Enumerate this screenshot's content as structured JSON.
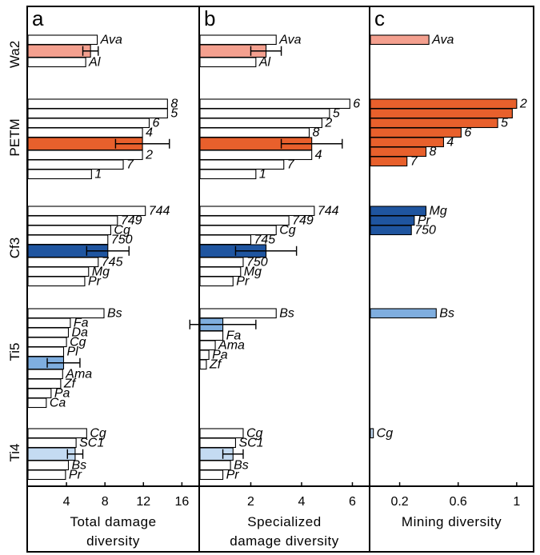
{
  "chart_data": {
    "type": "bar",
    "groups": [
      {
        "key": "wa2",
        "label": "Wa2",
        "color": "#f4a08f"
      },
      {
        "key": "petm",
        "label": "PETM",
        "color": "#e8602c"
      },
      {
        "key": "cf3",
        "label": "Cf3",
        "color": "#1f55a0"
      },
      {
        "key": "ti5",
        "label": "Ti5",
        "color": "#7faedf"
      },
      {
        "key": "ti4",
        "label": "Ti4",
        "color": "#c4dbf2"
      }
    ],
    "panels": [
      {
        "letter": "a",
        "xlabel_lines": [
          "Total damage",
          "diversity"
        ],
        "ticks": [
          4,
          8,
          12,
          16
        ],
        "xlim": [
          0,
          16.8
        ],
        "series": {
          "wa2": {
            "bars": [
              {
                "label": "Ava",
                "value": 7.2
              },
              {
                "label": "",
                "value": 6.5,
                "mean": true,
                "err": 0.8
              },
              {
                "label": "Al",
                "value": 6.0
              }
            ]
          },
          "petm": {
            "bars": [
              {
                "label": "8",
                "value": 14.5
              },
              {
                "label": "5",
                "value": 14.5
              },
              {
                "label": "6",
                "value": 12.6
              },
              {
                "label": "4",
                "value": 11.9
              },
              {
                "label": "",
                "value": 11.9,
                "mean": true,
                "err": 2.8
              },
              {
                "label": "2",
                "value": 11.9
              },
              {
                "label": "7",
                "value": 9.9
              },
              {
                "label": "1",
                "value": 6.6
              }
            ]
          },
          "cf3": {
            "bars": [
              {
                "label": "744",
                "value": 12.2
              },
              {
                "label": "749",
                "value": 9.3
              },
              {
                "label": "Cg",
                "value": 8.6
              },
              {
                "label": "750",
                "value": 8.3
              },
              {
                "label": "",
                "value": 8.3,
                "mean": true,
                "err": 2.2
              },
              {
                "label": "745",
                "value": 7.3
              },
              {
                "label": "Mg",
                "value": 6.3
              },
              {
                "label": "Pr",
                "value": 5.9
              }
            ]
          },
          "ti5": {
            "bars": [
              {
                "label": "Bs",
                "value": 7.9
              },
              {
                "label": "Fa",
                "value": 4.4
              },
              {
                "label": "Da",
                "value": 4.2
              },
              {
                "label": "Cg",
                "value": 4.0
              },
              {
                "label": "Pl",
                "value": 3.7
              },
              {
                "label": "",
                "value": 3.7,
                "mean": true,
                "err": 1.7
              },
              {
                "label": "Ama",
                "value": 3.6
              },
              {
                "label": "Zf",
                "value": 3.4
              },
              {
                "label": "Pa",
                "value": 2.4
              },
              {
                "label": "Ca",
                "value": 1.9
              }
            ]
          },
          "ti4": {
            "bars": [
              {
                "label": "Cg",
                "value": 6.1
              },
              {
                "label": "SC1",
                "value": 5.0
              },
              {
                "label": "",
                "value": 4.9,
                "mean": true,
                "err": 0.8
              },
              {
                "label": "Bs",
                "value": 4.2
              },
              {
                "label": "Pr",
                "value": 3.9
              }
            ]
          }
        }
      },
      {
        "letter": "b",
        "xlabel_lines": [
          "Specialized",
          "damage diversity"
        ],
        "ticks": [
          2,
          4,
          6
        ],
        "xlim": [
          0,
          6.3
        ],
        "series": {
          "wa2": {
            "bars": [
              {
                "label": "Ava",
                "value": 3.0
              },
              {
                "label": "",
                "value": 2.6,
                "mean": true,
                "err": 0.6
              },
              {
                "label": "Al",
                "value": 2.2
              }
            ]
          },
          "petm": {
            "bars": [
              {
                "label": "6",
                "value": 5.9
              },
              {
                "label": "5",
                "value": 5.1
              },
              {
                "label": "2",
                "value": 4.8
              },
              {
                "label": "8",
                "value": 4.3
              },
              {
                "label": "",
                "value": 4.4,
                "mean": true,
                "err": 1.2
              },
              {
                "label": "4",
                "value": 4.4
              },
              {
                "label": "7",
                "value": 3.3
              },
              {
                "label": "1",
                "value": 2.2
              }
            ]
          },
          "cf3": {
            "bars": [
              {
                "label": "744",
                "value": 4.5
              },
              {
                "label": "749",
                "value": 3.5
              },
              {
                "label": "Cg",
                "value": 3.0
              },
              {
                "label": "745",
                "value": 2.0
              },
              {
                "label": "",
                "value": 2.6,
                "mean": true,
                "err": 1.2
              },
              {
                "label": "750",
                "value": 1.7
              },
              {
                "label": "Mg",
                "value": 1.6
              },
              {
                "label": "Pr",
                "value": 1.3
              }
            ]
          },
          "ti5": {
            "bars": [
              {
                "label": "Bs",
                "value": 3.0
              },
              {
                "label": "",
                "value": 0.9,
                "mean": true,
                "err": 1.3
              },
              {
                "label": "Fa",
                "value": 0.9
              },
              {
                "label": "Ama",
                "value": 0.6
              },
              {
                "label": "Pa",
                "value": 0.35
              },
              {
                "label": "Zf",
                "value": 0.25
              }
            ]
          },
          "ti4": {
            "bars": [
              {
                "label": "Cg",
                "value": 1.7
              },
              {
                "label": "SC1",
                "value": 1.4
              },
              {
                "label": "",
                "value": 1.3,
                "mean": true,
                "err": 0.4
              },
              {
                "label": "Bs",
                "value": 1.2
              },
              {
                "label": "Pr",
                "value": 0.9
              }
            ]
          }
        }
      },
      {
        "letter": "c",
        "xlabel_lines": [
          "Mining diversity"
        ],
        "ticks": [
          0.2,
          0.6,
          1
        ],
        "xlim": [
          0,
          1.05
        ],
        "series": {
          "wa2": {
            "bars": [
              {
                "label": "Ava",
                "value": 0.4,
                "filled": true
              }
            ]
          },
          "petm": {
            "bars": [
              {
                "label": "2",
                "value": 1.0,
                "filled": true
              },
              {
                "label": "",
                "value": 0.97,
                "filled": true
              },
              {
                "label": "5",
                "value": 0.87,
                "filled": true
              },
              {
                "label": "6",
                "value": 0.62,
                "filled": true
              },
              {
                "label": "4",
                "value": 0.5,
                "filled": true
              },
              {
                "label": "8",
                "value": 0.38,
                "filled": true
              },
              {
                "label": "7",
                "value": 0.25,
                "filled": true
              }
            ]
          },
          "cf3": {
            "bars": [
              {
                "label": "Mg",
                "value": 0.38,
                "filled": true
              },
              {
                "label": "Pr",
                "value": 0.3,
                "filled": true
              },
              {
                "label": "750",
                "value": 0.28,
                "filled": true
              }
            ]
          },
          "ti5": {
            "bars": [
              {
                "label": "Bs",
                "value": 0.45,
                "filled": true
              }
            ]
          },
          "ti4": {
            "bars": [
              {
                "label": "Cg",
                "value": 0.02,
                "filled": true
              }
            ]
          }
        }
      }
    ]
  }
}
